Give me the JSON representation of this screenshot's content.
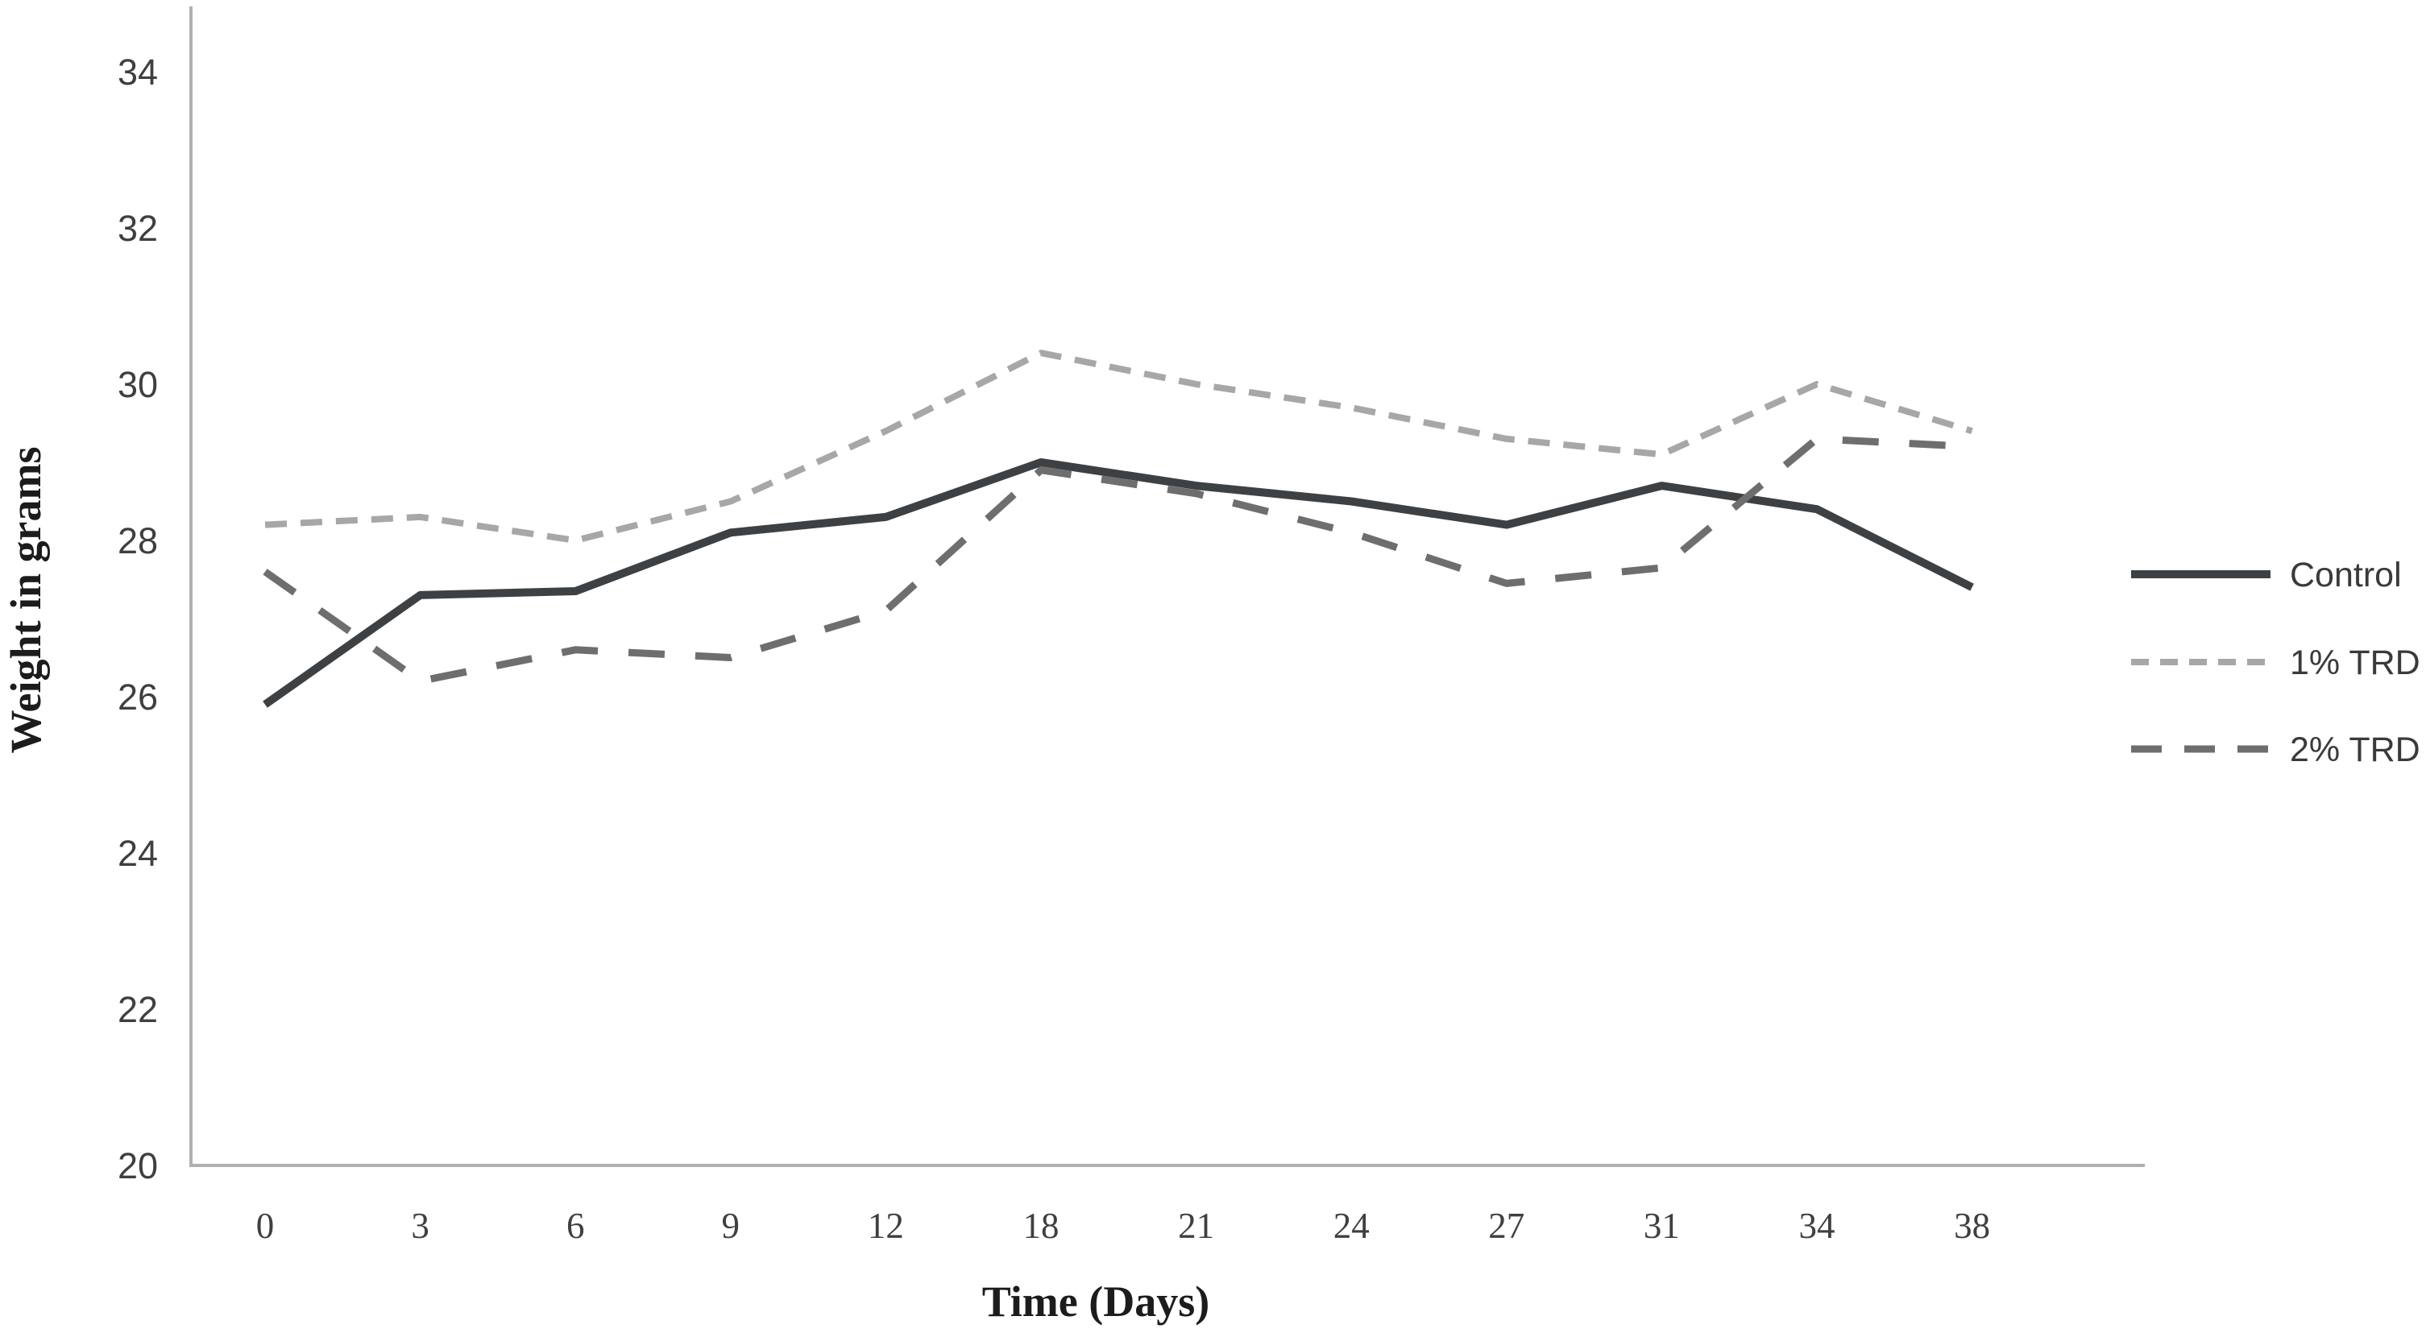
{
  "chart_data": {
    "type": "line",
    "title": "",
    "xlabel": "Time (Days)",
    "ylabel": "Weight in grams",
    "categories": [
      "0",
      "3",
      "6",
      "9",
      "12",
      "18",
      "21",
      "24",
      "27",
      "31",
      "34",
      "38"
    ],
    "y_ticks": [
      20,
      22,
      24,
      26,
      28,
      30,
      32,
      34
    ],
    "ylim": [
      20,
      35
    ],
    "grid": false,
    "legend_position": "right",
    "series": [
      {
        "name": "Control",
        "line_style": "solid",
        "color": "#3d4144",
        "values": [
          25.9,
          27.3,
          27.35,
          28.1,
          28.3,
          29.0,
          28.7,
          28.5,
          28.2,
          28.7,
          28.4,
          27.4
        ]
      },
      {
        "name": "1% TRD",
        "line_style": "dashed-short",
        "color": "#a7a7a7",
        "values": [
          28.2,
          28.3,
          28.0,
          28.5,
          29.4,
          30.4,
          30.0,
          29.7,
          29.3,
          29.1,
          30.0,
          29.4
        ]
      },
      {
        "name": "2% TRD",
        "line_style": "dashed-long",
        "color": "#6e6e6e",
        "values": [
          27.6,
          26.2,
          26.6,
          26.5,
          27.1,
          28.9,
          28.6,
          28.1,
          27.45,
          27.65,
          29.3,
          29.2
        ]
      }
    ]
  },
  "colors": {
    "axis_line": "#b0b0b0",
    "tick_text": "#3f3f3f",
    "title_text": "#1c1c1c",
    "background": "#ffffff"
  }
}
